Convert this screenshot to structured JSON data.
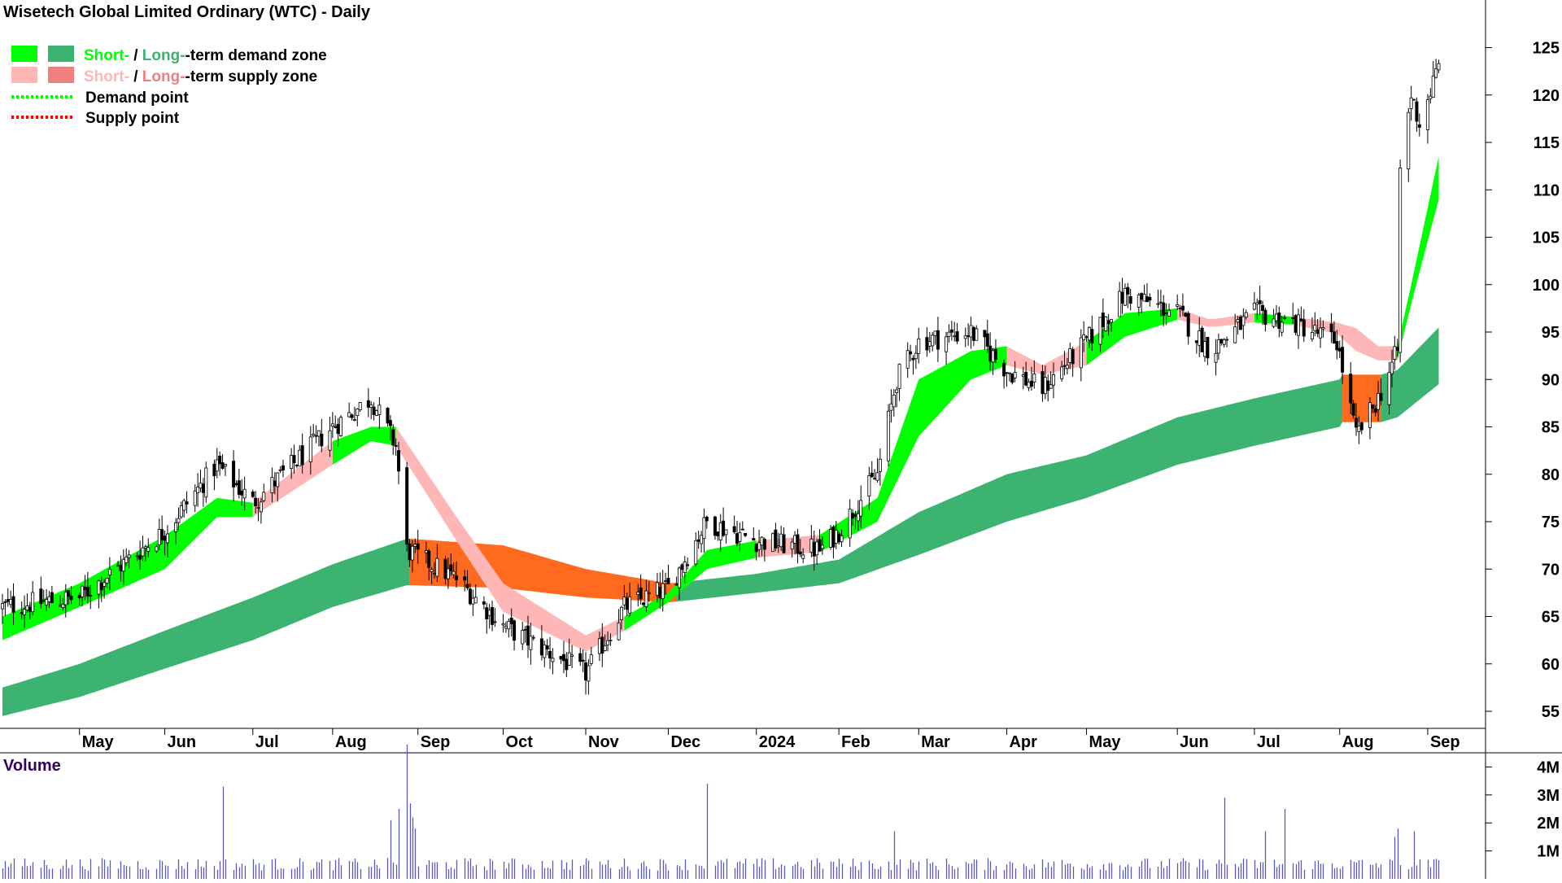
{
  "chart_data": {
    "type": "candlestick",
    "title": "Wisetech Global Limited Ordinary (WTC) - Daily",
    "legend": [
      {
        "key": "demand_zone",
        "short": "Short-",
        "sep": " / ",
        "long": "Long-",
        "rest": "-term demand zone",
        "short_color": "#00ff00",
        "long_color": "#3cb371"
      },
      {
        "key": "supply_zone",
        "short": "Short-",
        "sep": " / ",
        "long": "Long-",
        "rest": "-term supply zone",
        "short_color": "#ffb6b6",
        "long_color": "#f08080"
      },
      {
        "key": "demand_point",
        "label": "Demand point",
        "color": "#00ff00"
      },
      {
        "key": "supply_point",
        "label": "Supply point",
        "color": "#ff0000"
      }
    ],
    "price_axis": {
      "ticks": [
        55,
        60,
        65,
        70,
        75,
        80,
        85,
        90,
        95,
        100,
        105,
        110,
        115,
        120,
        125
      ],
      "range": [
        52.3,
        129
      ]
    },
    "time_axis": {
      "labels": [
        {
          "label": "May",
          "date": "2023-05-01"
        },
        {
          "label": "Jun",
          "date": "2023-06-01"
        },
        {
          "label": "Jul",
          "date": "2023-07-03"
        },
        {
          "label": "Aug",
          "date": "2023-08-01"
        },
        {
          "label": "Sep",
          "date": "2023-09-01"
        },
        {
          "label": "Oct",
          "date": "2023-10-02"
        },
        {
          "label": "Nov",
          "date": "2023-11-01"
        },
        {
          "label": "Dec",
          "date": "2023-12-01"
        },
        {
          "label": "2024",
          "date": "2024-01-02"
        },
        {
          "label": "Feb",
          "date": "2024-02-01"
        },
        {
          "label": "Mar",
          "date": "2024-03-01"
        },
        {
          "label": "Apr",
          "date": "2024-04-02"
        },
        {
          "label": "May",
          "date": "2024-05-01"
        },
        {
          "label": "Jun",
          "date": "2024-06-03"
        },
        {
          "label": "Jul",
          "date": "2024-07-01"
        },
        {
          "label": "Aug",
          "date": "2024-08-01"
        },
        {
          "label": "Sep",
          "date": "2024-09-02"
        }
      ]
    },
    "price_anchors": [
      {
        "date": "2023-04-03",
        "close": 66
      },
      {
        "date": "2023-05-01",
        "close": 67
      },
      {
        "date": "2023-06-01",
        "close": 74
      },
      {
        "date": "2023-06-20",
        "close": 81
      },
      {
        "date": "2023-07-03",
        "close": 77
      },
      {
        "date": "2023-08-01",
        "close": 85
      },
      {
        "date": "2023-08-15",
        "close": 88
      },
      {
        "date": "2023-08-24",
        "close": 83
      },
      {
        "date": "2023-08-28",
        "close": 72
      },
      {
        "date": "2023-09-15",
        "close": 69
      },
      {
        "date": "2023-10-02",
        "close": 64
      },
      {
        "date": "2023-10-20",
        "close": 61
      },
      {
        "date": "2023-11-01",
        "close": 59
      },
      {
        "date": "2023-11-15",
        "close": 66
      },
      {
        "date": "2023-12-01",
        "close": 68
      },
      {
        "date": "2023-12-15",
        "close": 75
      },
      {
        "date": "2024-01-02",
        "close": 73
      },
      {
        "date": "2024-01-25",
        "close": 72
      },
      {
        "date": "2024-02-01",
        "close": 74
      },
      {
        "date": "2024-02-15",
        "close": 80
      },
      {
        "date": "2024-02-22",
        "close": 90
      },
      {
        "date": "2024-03-01",
        "close": 94
      },
      {
        "date": "2024-03-20",
        "close": 95
      },
      {
        "date": "2024-04-02",
        "close": 91
      },
      {
        "date": "2024-04-15",
        "close": 89
      },
      {
        "date": "2024-05-01",
        "close": 94
      },
      {
        "date": "2024-05-15",
        "close": 99
      },
      {
        "date": "2024-06-03",
        "close": 97
      },
      {
        "date": "2024-06-15",
        "close": 93
      },
      {
        "date": "2024-07-01",
        "close": 97
      },
      {
        "date": "2024-07-15",
        "close": 96
      },
      {
        "date": "2024-07-31",
        "close": 94
      },
      {
        "date": "2024-08-07",
        "close": 84
      },
      {
        "date": "2024-08-15",
        "close": 88
      },
      {
        "date": "2024-08-22",
        "close": 93
      },
      {
        "date": "2024-08-23",
        "close": 112
      },
      {
        "date": "2024-08-27",
        "close": 120
      },
      {
        "date": "2024-08-30",
        "close": 117
      },
      {
        "date": "2024-09-06",
        "close": 123
      }
    ],
    "short_term_zone": [
      {
        "date": "2023-04-03",
        "lo": 62.5,
        "hi": 65,
        "state": "demand"
      },
      {
        "date": "2023-05-01",
        "lo": 66,
        "hi": 68.5,
        "state": "demand"
      },
      {
        "date": "2023-06-01",
        "lo": 70,
        "hi": 73.5,
        "state": "demand"
      },
      {
        "date": "2023-06-20",
        "lo": 75.5,
        "hi": 77.5,
        "state": "demand"
      },
      {
        "date": "2023-07-03",
        "lo": 75.5,
        "hi": 77,
        "state": "supply"
      },
      {
        "date": "2023-08-01",
        "lo": 81,
        "hi": 83.5,
        "state": "demand"
      },
      {
        "date": "2023-08-15",
        "lo": 83.5,
        "hi": 85,
        "state": "demand"
      },
      {
        "date": "2023-08-24",
        "lo": 83,
        "hi": 85,
        "state": "supply"
      },
      {
        "date": "2023-09-15",
        "lo": 73,
        "hi": 75.5,
        "state": "supply"
      },
      {
        "date": "2023-10-02",
        "lo": 65.5,
        "hi": 68.5,
        "state": "supply"
      },
      {
        "date": "2023-11-01",
        "lo": 61.3,
        "hi": 63,
        "state": "supply"
      },
      {
        "date": "2023-11-15",
        "lo": 63.5,
        "hi": 65,
        "state": "demand"
      },
      {
        "date": "2023-12-01",
        "lo": 66.5,
        "hi": 67.5,
        "state": "demand"
      },
      {
        "date": "2023-12-15",
        "lo": 70,
        "hi": 72,
        "state": "demand"
      },
      {
        "date": "2024-01-02",
        "lo": 71.2,
        "hi": 73,
        "state": "supply"
      },
      {
        "date": "2024-01-25",
        "lo": 71.8,
        "hi": 73.6,
        "state": "demand"
      },
      {
        "date": "2024-02-15",
        "lo": 75,
        "hi": 77.5,
        "state": "demand"
      },
      {
        "date": "2024-03-01",
        "lo": 84,
        "hi": 90,
        "state": "demand"
      },
      {
        "date": "2024-03-20",
        "lo": 90,
        "hi": 93,
        "state": "demand"
      },
      {
        "date": "2024-04-02",
        "lo": 91.5,
        "hi": 93.5,
        "state": "supply"
      },
      {
        "date": "2024-04-15",
        "lo": 90.5,
        "hi": 91.5,
        "state": "supply"
      },
      {
        "date": "2024-05-01",
        "lo": 91.5,
        "hi": 94,
        "state": "demand"
      },
      {
        "date": "2024-05-15",
        "lo": 94.5,
        "hi": 97,
        "state": "demand"
      },
      {
        "date": "2024-06-03",
        "lo": 96.3,
        "hi": 97.5,
        "state": "supply"
      },
      {
        "date": "2024-06-15",
        "lo": 95.5,
        "hi": 96.3,
        "state": "supply"
      },
      {
        "date": "2024-07-01",
        "lo": 96,
        "hi": 97,
        "state": "demand"
      },
      {
        "date": "2024-07-15",
        "lo": 95.8,
        "hi": 96.6,
        "state": "supply"
      },
      {
        "date": "2024-07-31",
        "lo": 94.8,
        "hi": 96,
        "state": "supply"
      },
      {
        "date": "2024-08-07",
        "lo": 93,
        "hi": 95.4,
        "state": "supply"
      },
      {
        "date": "2024-08-15",
        "lo": 92,
        "hi": 93.5,
        "state": "supply"
      },
      {
        "date": "2024-08-22",
        "lo": 92,
        "hi": 93.5,
        "state": "demand"
      },
      {
        "date": "2024-08-27",
        "lo": 98,
        "hi": 100,
        "state": "demand"
      },
      {
        "date": "2024-09-06",
        "lo": 109,
        "hi": 113.5,
        "state": "demand"
      }
    ],
    "long_term_zone": [
      {
        "date": "2023-04-03",
        "lo": 54.5,
        "hi": 57.5,
        "state": "demand"
      },
      {
        "date": "2023-05-01",
        "lo": 56.5,
        "hi": 60,
        "state": "demand"
      },
      {
        "date": "2023-06-01",
        "lo": 59.5,
        "hi": 63.5,
        "state": "demand"
      },
      {
        "date": "2023-07-03",
        "lo": 62.5,
        "hi": 67,
        "state": "demand"
      },
      {
        "date": "2023-08-01",
        "lo": 66,
        "hi": 70.5,
        "state": "demand"
      },
      {
        "date": "2023-08-28",
        "lo": 68.3,
        "hi": 73.2,
        "state": "demand"
      },
      {
        "date": "2023-08-29",
        "lo": 68.3,
        "hi": 73.2,
        "state": "supply"
      },
      {
        "date": "2023-10-02",
        "lo": 68,
        "hi": 72.5,
        "state": "supply"
      },
      {
        "date": "2023-11-01",
        "lo": 67,
        "hi": 70,
        "state": "supply"
      },
      {
        "date": "2023-12-01",
        "lo": 66.5,
        "hi": 68.5,
        "state": "supply"
      },
      {
        "date": "2023-12-02",
        "lo": 66.5,
        "hi": 68.5,
        "state": "demand"
      },
      {
        "date": "2024-01-02",
        "lo": 67.5,
        "hi": 69.5,
        "state": "demand"
      },
      {
        "date": "2024-02-01",
        "lo": 68.5,
        "hi": 71,
        "state": "demand"
      },
      {
        "date": "2024-03-01",
        "lo": 71.5,
        "hi": 76,
        "state": "demand"
      },
      {
        "date": "2024-04-02",
        "lo": 75,
        "hi": 80,
        "state": "demand"
      },
      {
        "date": "2024-05-01",
        "lo": 77.5,
        "hi": 82,
        "state": "demand"
      },
      {
        "date": "2024-06-03",
        "lo": 81,
        "hi": 86,
        "state": "demand"
      },
      {
        "date": "2024-07-01",
        "lo": 83,
        "hi": 88,
        "state": "demand"
      },
      {
        "date": "2024-08-01",
        "lo": 85,
        "hi": 90,
        "state": "demand"
      },
      {
        "date": "2024-08-02",
        "lo": 85.5,
        "hi": 90.5,
        "state": "supply"
      },
      {
        "date": "2024-08-15",
        "lo": 85.5,
        "hi": 90.5,
        "state": "supply"
      },
      {
        "date": "2024-08-16",
        "lo": 85.5,
        "hi": 90.5,
        "state": "demand"
      },
      {
        "date": "2024-08-22",
        "lo": 86,
        "hi": 91,
        "state": "demand"
      },
      {
        "date": "2024-09-06",
        "lo": 89.5,
        "hi": 95.5,
        "state": "demand"
      }
    ],
    "volume": {
      "title": "Volume",
      "ticks": [
        {
          "value": 1000000,
          "label": "1M"
        },
        {
          "value": 2000000,
          "label": "2M"
        },
        {
          "value": 3000000,
          "label": "3M"
        },
        {
          "value": 4000000,
          "label": "4M"
        }
      ],
      "baseline": 500000,
      "spikes": [
        {
          "date": "2023-06-22",
          "value": 3300000
        },
        {
          "date": "2023-08-22",
          "value": 2100000
        },
        {
          "date": "2023-08-25",
          "value": 2500000
        },
        {
          "date": "2023-08-28",
          "value": 4800000
        },
        {
          "date": "2023-08-29",
          "value": 2700000
        },
        {
          "date": "2023-08-30",
          "value": 2200000
        },
        {
          "date": "2023-08-31",
          "value": 1800000
        },
        {
          "date": "2023-12-15",
          "value": 3400000
        },
        {
          "date": "2024-02-21",
          "value": 1700000
        },
        {
          "date": "2024-06-20",
          "value": 2900000
        },
        {
          "date": "2024-07-05",
          "value": 1700000
        },
        {
          "date": "2024-07-12",
          "value": 2500000
        },
        {
          "date": "2024-08-21",
          "value": 1500000
        },
        {
          "date": "2024-08-22",
          "value": 1800000
        },
        {
          "date": "2024-08-28",
          "value": 1700000
        }
      ]
    }
  }
}
